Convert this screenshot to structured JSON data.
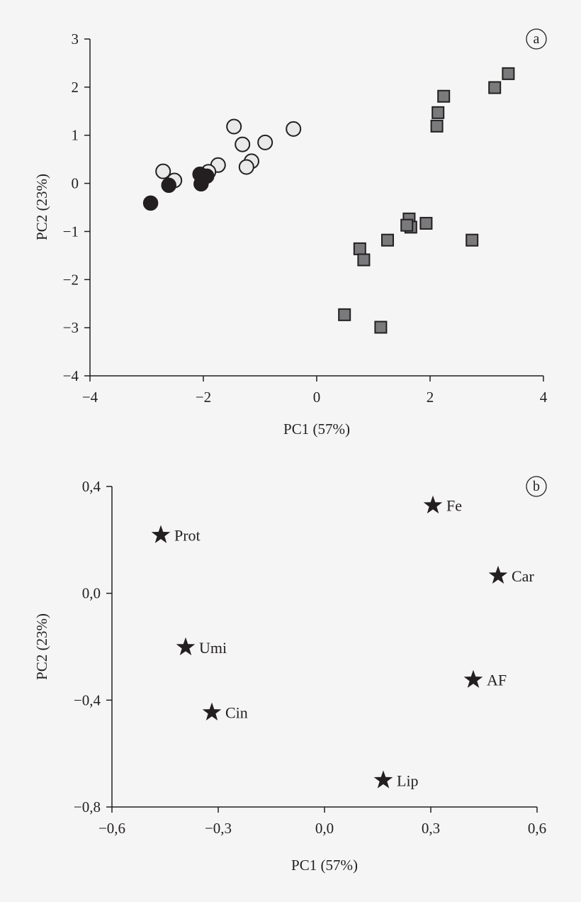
{
  "chart_data": [
    {
      "type": "scatter",
      "panel_label": "a",
      "xlabel": "PC1 (57%)",
      "ylabel": "PC2 (23%)",
      "xlim": [
        -4,
        4
      ],
      "ylim": [
        -4,
        3
      ],
      "xticks": [
        -4,
        -2,
        0,
        2,
        4
      ],
      "xtick_labels": [
        "−4",
        "−2",
        "0",
        "2",
        "4"
      ],
      "yticks": [
        3,
        2,
        1,
        0,
        -1,
        -2,
        -3,
        -4
      ],
      "ytick_labels": [
        "3",
        "2",
        "1",
        "0",
        "−1",
        "−2",
        "−3",
        "−4"
      ],
      "grid": false,
      "series": [
        {
          "marker": "circle-open",
          "color": "#e9e9e9",
          "points": [
            [
              -2.71,
              0.25
            ],
            [
              -2.51,
              0.06
            ],
            [
              -1.46,
              1.18
            ],
            [
              -0.41,
              1.13
            ],
            [
              -1.31,
              0.81
            ],
            [
              -0.91,
              0.85
            ],
            [
              -1.15,
              0.46
            ],
            [
              -1.24,
              0.34
            ],
            [
              -1.74,
              0.38
            ],
            [
              -1.91,
              0.24
            ]
          ]
        },
        {
          "marker": "circle-filled",
          "color": "#231f20",
          "points": [
            [
              -2.93,
              -0.41
            ],
            [
              -2.61,
              -0.04
            ],
            [
              -2.06,
              0.19
            ],
            [
              -1.94,
              0.15
            ],
            [
              -2.04,
              -0.01
            ]
          ]
        },
        {
          "marker": "square",
          "color": "#7a7a7c",
          "points": [
            [
              3.38,
              2.28
            ],
            [
              3.14,
              1.99
            ],
            [
              2.24,
              1.81
            ],
            [
              2.14,
              1.47
            ],
            [
              2.12,
              1.19
            ],
            [
              1.63,
              -0.74
            ],
            [
              1.66,
              -0.91
            ],
            [
              1.59,
              -0.87
            ],
            [
              1.93,
              -0.83
            ],
            [
              1.25,
              -1.18
            ],
            [
              2.74,
              -1.18
            ],
            [
              0.76,
              -1.36
            ],
            [
              0.83,
              -1.59
            ],
            [
              0.49,
              -2.73
            ],
            [
              1.13,
              -2.99
            ]
          ]
        }
      ]
    },
    {
      "type": "scatter",
      "panel_label": "b",
      "xlabel": "PC1 (57%)",
      "ylabel": "PC2 (23%)",
      "xlim": [
        -0.6,
        0.6
      ],
      "ylim": [
        -0.8,
        0.4
      ],
      "xticks": [
        -0.6,
        -0.3,
        0,
        0.3,
        0.6
      ],
      "xtick_labels": [
        "−0,6",
        "−0,3",
        "0,0",
        "0,3",
        "0,6"
      ],
      "yticks": [
        0.4,
        0,
        -0.4,
        -0.8
      ],
      "ytick_labels": [
        "0,4",
        "0,0",
        "−0,4",
        "−0,8"
      ],
      "grid": false,
      "marker": "star",
      "color": "#231f20",
      "points": [
        {
          "label": "Prot",
          "x": -0.462,
          "y": 0.218
        },
        {
          "label": "Umi",
          "x": -0.392,
          "y": -0.202
        },
        {
          "label": "Cin",
          "x": -0.318,
          "y": -0.446
        },
        {
          "label": "Fe",
          "x": 0.306,
          "y": 0.329
        },
        {
          "label": "Car",
          "x": 0.49,
          "y": 0.066
        },
        {
          "label": "AF",
          "x": 0.42,
          "y": -0.324
        },
        {
          "label": "Lip",
          "x": 0.166,
          "y": -0.7
        }
      ]
    }
  ]
}
